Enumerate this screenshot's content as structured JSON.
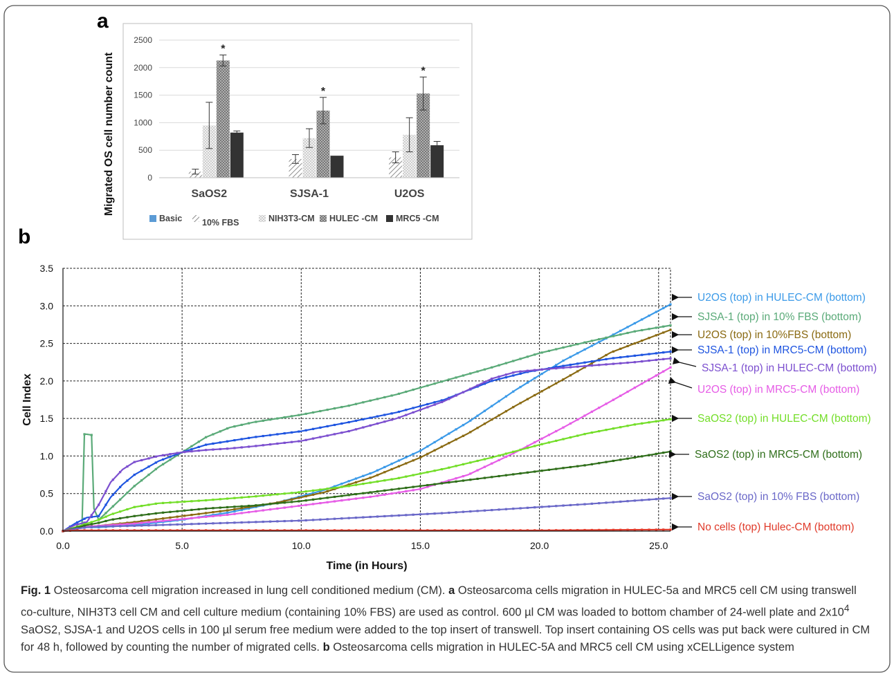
{
  "panel_a": {
    "letter": "a",
    "chart_data": {
      "type": "bar",
      "ylabel": "Migrated OS cell number count",
      "ylim": [
        0,
        2500
      ],
      "yticks": [
        "0",
        "500",
        "1000",
        "1500",
        "2000",
        "2500"
      ],
      "categories": [
        "SaOS2",
        "SJSA-1",
        "U2OS"
      ],
      "series": [
        {
          "name": "Basic",
          "values": [
            0,
            0,
            0
          ],
          "color": "#5b9bd5",
          "pattern": "solid"
        },
        {
          "name": "10% FBS",
          "values": [
            110,
            340,
            370
          ],
          "errors": [
            45,
            80,
            100
          ],
          "color": "#9a9a9a",
          "pattern": "diagonal"
        },
        {
          "name": "NIH3T3-CM",
          "values": [
            950,
            720,
            780
          ],
          "errors": [
            420,
            170,
            310
          ],
          "color": "#c8c8c8",
          "pattern": "dots"
        },
        {
          "name": "HULEC -CM",
          "values": [
            2130,
            1220,
            1530
          ],
          "errors": [
            100,
            240,
            300
          ],
          "color": "#8a8a8a",
          "pattern": "checker"
        },
        {
          "name": "MRC5 -CM",
          "values": [
            820,
            400,
            590
          ],
          "errors": [
            30,
            0,
            70
          ],
          "color": "#333333",
          "pattern": "solid"
        }
      ],
      "significance": [
        {
          "category": "SaOS2",
          "series": "HULEC -CM",
          "label": "*"
        },
        {
          "category": "SJSA-1",
          "series": "HULEC -CM",
          "label": "*"
        },
        {
          "category": "U2OS",
          "series": "HULEC -CM",
          "label": "*"
        }
      ],
      "grid": "horizontal",
      "legend_placement": "bottom"
    }
  },
  "panel_b": {
    "letter": "b",
    "chart_data": {
      "type": "line",
      "xlabel": "Time (in Hours)",
      "ylabel": "Cell Index",
      "xlim": [
        0,
        25.5
      ],
      "ylim": [
        0,
        3.5
      ],
      "xticks": [
        "0.0",
        "5.0",
        "10.0",
        "15.0",
        "20.0",
        "25.0"
      ],
      "yticks": [
        "0.0",
        "0.5",
        "1.0",
        "1.5",
        "2.0",
        "2.5",
        "3.0",
        "3.5"
      ],
      "grid": "dashed",
      "legend_placement": "right",
      "series": [
        {
          "name": "U2OS (top) in HULEC-CM (bottom)",
          "color": "#3b9ae8",
          "x": [
            0,
            0.5,
            1,
            1.5,
            3,
            5,
            7,
            9,
            11,
            13,
            15,
            17,
            19,
            21,
            23,
            25.5
          ],
          "y": [
            0,
            0.03,
            0.05,
            0.05,
            0.08,
            0.15,
            0.25,
            0.38,
            0.55,
            0.78,
            1.07,
            1.45,
            1.88,
            2.27,
            2.6,
            3.02
          ]
        },
        {
          "name": "SJSA-1 (top) in 10% FBS (bottom)",
          "color": "#5aaa78",
          "x": [
            0,
            0.5,
            0.8,
            0.9,
            1,
            1.2,
            1.3,
            1.5,
            2,
            3,
            4,
            5,
            6,
            7,
            8,
            9,
            10,
            12,
            14,
            16,
            18,
            20,
            22,
            24,
            25.5
          ],
          "y": [
            0,
            0.03,
            0.08,
            1.29,
            1.29,
            1.28,
            0.3,
            0.15,
            0.3,
            0.6,
            0.85,
            1.05,
            1.25,
            1.38,
            1.45,
            1.5,
            1.55,
            1.67,
            1.82,
            2.0,
            2.18,
            2.37,
            2.52,
            2.66,
            2.74
          ]
        },
        {
          "name": "U2OS (top) in 10%FBS (bottom)",
          "color": "#8a6a12",
          "x": [
            0,
            0.5,
            1,
            1.5,
            3,
            5,
            7,
            9,
            11,
            13,
            15,
            17,
            19,
            21,
            23,
            25.5
          ],
          "y": [
            0,
            0.04,
            0.06,
            0.07,
            0.12,
            0.2,
            0.28,
            0.38,
            0.52,
            0.72,
            0.98,
            1.3,
            1.67,
            2.02,
            2.38,
            2.68
          ]
        },
        {
          "name": "SJSA-1 (top) in MRC5-CM (bottom)",
          "color": "#1f55e0",
          "x": [
            0,
            0.5,
            1,
            1.5,
            2,
            2.5,
            3,
            4,
            5,
            6,
            8,
            10,
            12,
            14,
            16,
            18,
            19.5,
            21,
            23,
            25.5
          ],
          "y": [
            0,
            0.1,
            0.18,
            0.2,
            0.45,
            0.62,
            0.75,
            0.93,
            1.05,
            1.15,
            1.25,
            1.33,
            1.45,
            1.58,
            1.75,
            2.0,
            2.12,
            2.2,
            2.3,
            2.39
          ]
        },
        {
          "name": "SJSA-1 (top) in HULEC-CM (bottom)",
          "color": "#7c4fcf",
          "x": [
            0,
            0.5,
            1,
            1.5,
            2,
            2.5,
            3,
            4,
            5,
            6,
            7,
            8,
            10,
            12,
            14,
            16,
            18,
            19,
            20,
            22,
            24,
            25.5
          ],
          "y": [
            0,
            0.08,
            0.12,
            0.35,
            0.65,
            0.82,
            0.92,
            1.0,
            1.05,
            1.08,
            1.1,
            1.13,
            1.2,
            1.33,
            1.5,
            1.73,
            2.03,
            2.12,
            2.15,
            2.2,
            2.25,
            2.3
          ]
        },
        {
          "name": "U2OS (top) in MRC5-CM (bottom)",
          "color": "#e65ce6",
          "x": [
            0,
            0.5,
            1,
            1.5,
            3,
            5,
            7,
            9,
            11,
            13,
            15,
            17,
            19,
            21,
            23,
            25.5
          ],
          "y": [
            0,
            0.04,
            0.06,
            0.07,
            0.1,
            0.16,
            0.22,
            0.3,
            0.38,
            0.46,
            0.56,
            0.75,
            1.05,
            1.38,
            1.73,
            2.18
          ]
        },
        {
          "name": "SaOS2 (top) in HULEC-CM (bottom)",
          "color": "#73de28",
          "x": [
            0,
            0.5,
            1,
            1.5,
            2,
            3,
            4,
            5,
            6,
            8,
            10,
            12,
            14,
            16,
            18,
            20,
            22,
            24,
            25.5
          ],
          "y": [
            0,
            0.05,
            0.1,
            0.15,
            0.22,
            0.32,
            0.37,
            0.39,
            0.41,
            0.46,
            0.52,
            0.6,
            0.7,
            0.83,
            0.98,
            1.15,
            1.3,
            1.42,
            1.49
          ]
        },
        {
          "name": "SaOS2 (top) in MRC5-CM (bottom)",
          "color": "#2f6e1a",
          "x": [
            0,
            0.5,
            1,
            1.5,
            2,
            3,
            4,
            5,
            6,
            8,
            10,
            12,
            14,
            16,
            18,
            20,
            22,
            24,
            25.5
          ],
          "y": [
            0,
            0.04,
            0.08,
            0.11,
            0.15,
            0.2,
            0.24,
            0.27,
            0.3,
            0.34,
            0.4,
            0.48,
            0.56,
            0.64,
            0.72,
            0.8,
            0.88,
            0.98,
            1.06
          ]
        },
        {
          "name": "SaOS2 (top) in 10% FBS (bottom)",
          "color": "#6a68c8",
          "x": [
            0,
            0.5,
            1,
            1.5,
            3,
            5,
            7,
            10,
            13,
            16,
            19,
            22,
            25.5
          ],
          "y": [
            0,
            0.03,
            0.05,
            0.06,
            0.07,
            0.09,
            0.11,
            0.14,
            0.19,
            0.24,
            0.3,
            0.36,
            0.44
          ]
        },
        {
          "name": "No cells (top) Hulec-CM (bottom)",
          "color": "#e03a2a",
          "x": [
            0,
            0.5,
            1,
            1.5,
            3,
            6,
            10,
            15,
            20,
            25.5
          ],
          "y": [
            0,
            0.01,
            0.01,
            0.01,
            0.01,
            0.01,
            0.01,
            0.01,
            0.01,
            0.02
          ]
        }
      ]
    }
  },
  "caption": {
    "fig_label": "Fig. 1",
    "text_1": " Osteosarcoma cell migration increased in lung cell conditioned medium (CM). ",
    "a_label": "a",
    "text_2": " Osteosarcoma cells migration in HULEC-5a and MRC5 cell CM using transwell co-culture, NIH3T3 cell CM and cell culture medium (containing 10% FBS) are used as control. 600 µl CM was loaded to bottom chamber of 24-well plate and 2x10",
    "superscript": "4",
    "text_3": " SaOS2, SJSA-1 and U2OS cells in 100 µl serum free medium were added to the top insert of transwell. Top insert containing OS cells was put back were cultured in CM for 48 h, followed by counting the number of migrated cells. ",
    "b_label": "b",
    "text_4": " Osteosarcoma cells migration in HULEC-5A and MRC5 cell CM using xCELLigence system"
  }
}
